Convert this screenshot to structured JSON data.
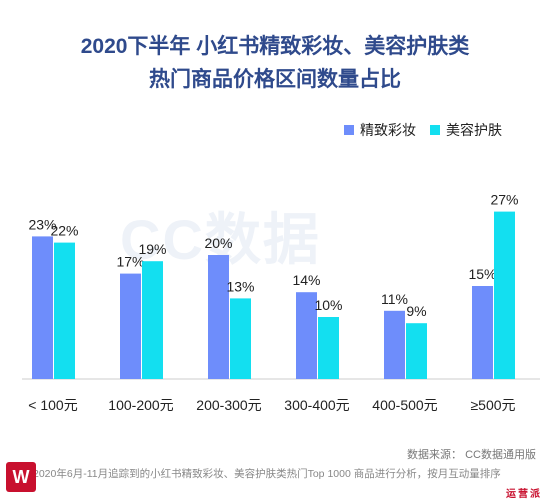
{
  "header": {
    "title_line1": "2020下半年 小红书精致彩妆、美容护肤类",
    "title_line2": "热门商品价格区间数量占比"
  },
  "watermark": "CC数据",
  "source": "数据来源：  CC数据通用版",
  "footnote": "基于2020年6月-11月追踪到的小红书精致彩妆、美容护肤类热门Top 1000 商品进行分析，按月互动量排序",
  "logo_letter": "W",
  "brand": "运营派",
  "colors": {
    "makeup": "#6e8dfb",
    "skincare": "#13dff0",
    "axis": "#cccccc",
    "title": "#2f4a8c"
  },
  "chart_data": {
    "type": "bar",
    "title": "2020下半年 小红书精致彩妆、美容护肤类 热门商品价格区间数量占比",
    "categories": [
      "< 100元",
      "100-200元",
      "200-300元",
      "300-400元",
      "400-500元",
      "≥500元"
    ],
    "series": [
      {
        "name": "精致彩妆",
        "values": [
          23,
          17,
          20,
          14,
          11,
          15
        ],
        "labels": [
          "23%",
          "17%",
          "20%",
          "14%",
          "11%",
          "15%"
        ]
      },
      {
        "name": "美容护肤",
        "values": [
          22,
          19,
          13,
          10,
          9,
          27
        ],
        "labels": [
          "22%",
          "19%",
          "13%",
          "10%",
          "9%",
          "27%"
        ]
      }
    ],
    "ylim": [
      0,
      30
    ],
    "grid": false,
    "legend": "top-right"
  }
}
